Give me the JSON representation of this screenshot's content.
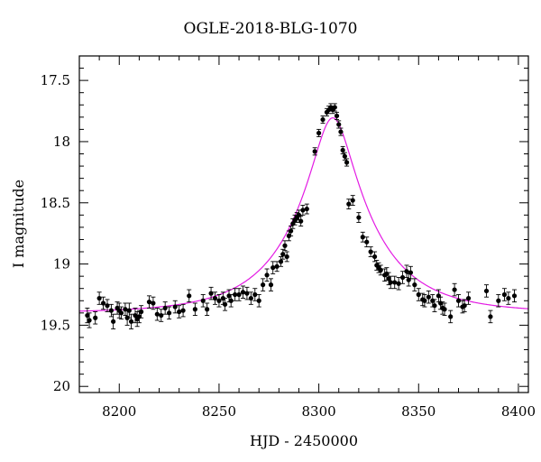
{
  "chart_data": {
    "type": "scatter",
    "title": "OGLE-2018-BLG-1070",
    "xlabel": "HJD - 2450000",
    "ylabel": "I magnitude",
    "xlim": [
      8180,
      8405
    ],
    "ylim": [
      17.3,
      20.05
    ],
    "y_inverted": true,
    "x_ticks": [
      8200,
      8250,
      8300,
      8350,
      8400
    ],
    "y_ticks": [
      17.5,
      18,
      18.5,
      19,
      19.5,
      20
    ],
    "y_tick_labels": [
      "17.5",
      "18",
      "18.5",
      "19",
      "19.5",
      "20"
    ],
    "grid": false,
    "legend": "none",
    "colors": {
      "points": "#000000",
      "model": "#e31ae3"
    },
    "series": [
      {
        "kind": "observed",
        "points": [
          [
            8184,
            19.42,
            0.06
          ],
          [
            8185,
            19.46,
            0.06
          ],
          [
            8188,
            19.44,
            0.05
          ],
          [
            8190,
            19.28,
            0.05
          ],
          [
            8192,
            19.32,
            0.05
          ],
          [
            8194,
            19.34,
            0.05
          ],
          [
            8196,
            19.38,
            0.05
          ],
          [
            8197,
            19.47,
            0.06
          ],
          [
            8199,
            19.36,
            0.05
          ],
          [
            8200,
            19.38,
            0.06
          ],
          [
            8201,
            19.4,
            0.05
          ],
          [
            8203,
            19.37,
            0.05
          ],
          [
            8204,
            19.44,
            0.06
          ],
          [
            8205,
            19.38,
            0.06
          ],
          [
            8206,
            19.47,
            0.06
          ],
          [
            8208,
            19.42,
            0.06
          ],
          [
            8209,
            19.45,
            0.06
          ],
          [
            8210,
            19.43,
            0.05
          ],
          [
            8211,
            19.39,
            0.05
          ],
          [
            8215,
            19.31,
            0.05
          ],
          [
            8217,
            19.32,
            0.05
          ],
          [
            8219,
            19.41,
            0.05
          ],
          [
            8221,
            19.42,
            0.05
          ],
          [
            8223,
            19.36,
            0.05
          ],
          [
            8225,
            19.4,
            0.05
          ],
          [
            8228,
            19.35,
            0.05
          ],
          [
            8230,
            19.39,
            0.05
          ],
          [
            8232,
            19.38,
            0.05
          ],
          [
            8235,
            19.26,
            0.05
          ],
          [
            8238,
            19.37,
            0.05
          ],
          [
            8242,
            19.3,
            0.05
          ],
          [
            8244,
            19.37,
            0.05
          ],
          [
            8246,
            19.24,
            0.05
          ],
          [
            8248,
            19.28,
            0.05
          ],
          [
            8250,
            19.3,
            0.05
          ],
          [
            8252,
            19.28,
            0.05
          ],
          [
            8253,
            19.33,
            0.05
          ],
          [
            8255,
            19.26,
            0.05
          ],
          [
            8256,
            19.3,
            0.05
          ],
          [
            8258,
            19.25,
            0.05
          ],
          [
            8260,
            19.25,
            0.05
          ],
          [
            8262,
            19.23,
            0.05
          ],
          [
            8264,
            19.24,
            0.05
          ],
          [
            8266,
            19.28,
            0.05
          ],
          [
            8268,
            19.25,
            0.05
          ],
          [
            8270,
            19.3,
            0.05
          ],
          [
            8272,
            19.17,
            0.05
          ],
          [
            8274,
            19.09,
            0.05
          ],
          [
            8276,
            19.17,
            0.05
          ],
          [
            8277,
            19.03,
            0.05
          ],
          [
            8279,
            19.02,
            0.04
          ],
          [
            8281,
            18.98,
            0.04
          ],
          [
            8282,
            18.92,
            0.04
          ],
          [
            8283,
            18.85,
            0.04
          ],
          [
            8284,
            18.94,
            0.04
          ],
          [
            8285,
            18.77,
            0.04
          ],
          [
            8286,
            18.73,
            0.04
          ],
          [
            8287,
            18.67,
            0.04
          ],
          [
            8288,
            18.64,
            0.04
          ],
          [
            8289,
            18.62,
            0.04
          ],
          [
            8290,
            18.6,
            0.04
          ],
          [
            8291,
            18.65,
            0.04
          ],
          [
            8292,
            18.56,
            0.04
          ],
          [
            8294,
            18.55,
            0.04
          ],
          [
            8298,
            18.08,
            0.03
          ],
          [
            8300,
            17.93,
            0.03
          ],
          [
            8302,
            17.82,
            0.03
          ],
          [
            8304,
            17.76,
            0.03
          ],
          [
            8305,
            17.74,
            0.03
          ],
          [
            8306,
            17.72,
            0.03
          ],
          [
            8307,
            17.74,
            0.03
          ],
          [
            8308,
            17.72,
            0.03
          ],
          [
            8309,
            17.79,
            0.03
          ],
          [
            8310,
            17.86,
            0.03
          ],
          [
            8311,
            17.92,
            0.03
          ],
          [
            8312,
            18.07,
            0.03
          ],
          [
            8313,
            18.12,
            0.03
          ],
          [
            8314,
            18.17,
            0.03
          ],
          [
            8315,
            18.51,
            0.04
          ],
          [
            8317,
            18.48,
            0.04
          ],
          [
            8320,
            18.62,
            0.04
          ],
          [
            8322,
            18.78,
            0.04
          ],
          [
            8324,
            18.82,
            0.04
          ],
          [
            8326,
            18.9,
            0.04
          ],
          [
            8328,
            18.94,
            0.04
          ],
          [
            8329,
            19.01,
            0.04
          ],
          [
            8330,
            19.03,
            0.04
          ],
          [
            8331,
            19.05,
            0.04
          ],
          [
            8333,
            19.09,
            0.05
          ],
          [
            8334,
            19.08,
            0.05
          ],
          [
            8335,
            19.12,
            0.05
          ],
          [
            8336,
            19.15,
            0.05
          ],
          [
            8338,
            19.15,
            0.05
          ],
          [
            8340,
            19.16,
            0.05
          ],
          [
            8342,
            19.11,
            0.05
          ],
          [
            8344,
            19.06,
            0.05
          ],
          [
            8345,
            19.13,
            0.05
          ],
          [
            8346,
            19.07,
            0.05
          ],
          [
            8348,
            19.17,
            0.05
          ],
          [
            8350,
            19.25,
            0.05
          ],
          [
            8352,
            19.29,
            0.05
          ],
          [
            8353,
            19.3,
            0.05
          ],
          [
            8355,
            19.27,
            0.05
          ],
          [
            8357,
            19.3,
            0.05
          ],
          [
            8358,
            19.34,
            0.05
          ],
          [
            8360,
            19.26,
            0.05
          ],
          [
            8361,
            19.32,
            0.05
          ],
          [
            8362,
            19.36,
            0.05
          ],
          [
            8363,
            19.37,
            0.05
          ],
          [
            8366,
            19.43,
            0.05
          ],
          [
            8368,
            19.21,
            0.05
          ],
          [
            8370,
            19.3,
            0.05
          ],
          [
            8372,
            19.35,
            0.05
          ],
          [
            8373,
            19.34,
            0.05
          ],
          [
            8375,
            19.28,
            0.05
          ],
          [
            8384,
            19.22,
            0.05
          ],
          [
            8386,
            19.43,
            0.05
          ],
          [
            8390,
            19.3,
            0.05
          ],
          [
            8393,
            19.25,
            0.05
          ],
          [
            8395,
            19.28,
            0.05
          ],
          [
            8398,
            19.26,
            0.05
          ]
        ]
      },
      {
        "kind": "model",
        "model": {
          "t0": 8307,
          "u0": 0.235,
          "tE": 40,
          "baseline": 19.4,
          "blend_fraction": 1.0
        }
      }
    ]
  }
}
